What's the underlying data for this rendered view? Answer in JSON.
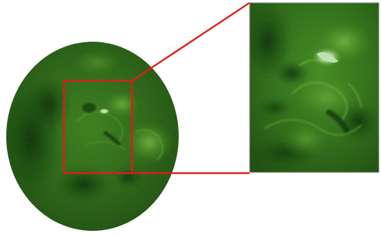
{
  "image": {
    "subject": "solar-disk-with-zoom-inset",
    "colors": {
      "background": "#ffffff",
      "disk_dark": "#0d2a05",
      "disk_mid": "#2f6a14",
      "disk_light": "#5aa02a",
      "flare_highlight": "#f4ffe6",
      "zoom_outline": "#e11a1a",
      "inset_border": "#9a9a9a"
    }
  }
}
